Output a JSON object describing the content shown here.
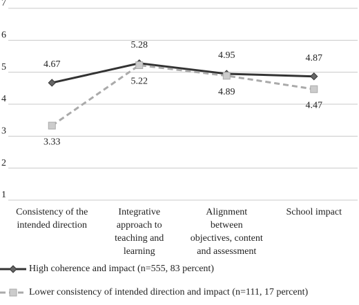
{
  "chart_data": {
    "type": "line",
    "categories": [
      [
        "Consistency of the",
        "intended direction"
      ],
      [
        "Integrative",
        "approach to",
        "teaching and",
        "learning"
      ],
      [
        "Alignment",
        "between",
        "objectives, content",
        "and assessment"
      ],
      [
        "School impact"
      ]
    ],
    "series": [
      {
        "name": "High coherence and impact (n=555, 83 percent)",
        "color": "#333333",
        "dash": false,
        "marker": "diamond",
        "values": [
          4.67,
          5.28,
          4.95,
          4.87
        ]
      },
      {
        "name": "Lower consistency of intended direction and impact  (n=111, 17 percent)",
        "color": "#aaaaaa",
        "dash": true,
        "marker": "square",
        "values": [
          3.33,
          5.22,
          4.89,
          4.47
        ]
      }
    ],
    "ylim": [
      1,
      7
    ],
    "yticks": [
      1,
      2,
      3,
      4,
      5,
      6,
      7
    ],
    "grid": true
  }
}
